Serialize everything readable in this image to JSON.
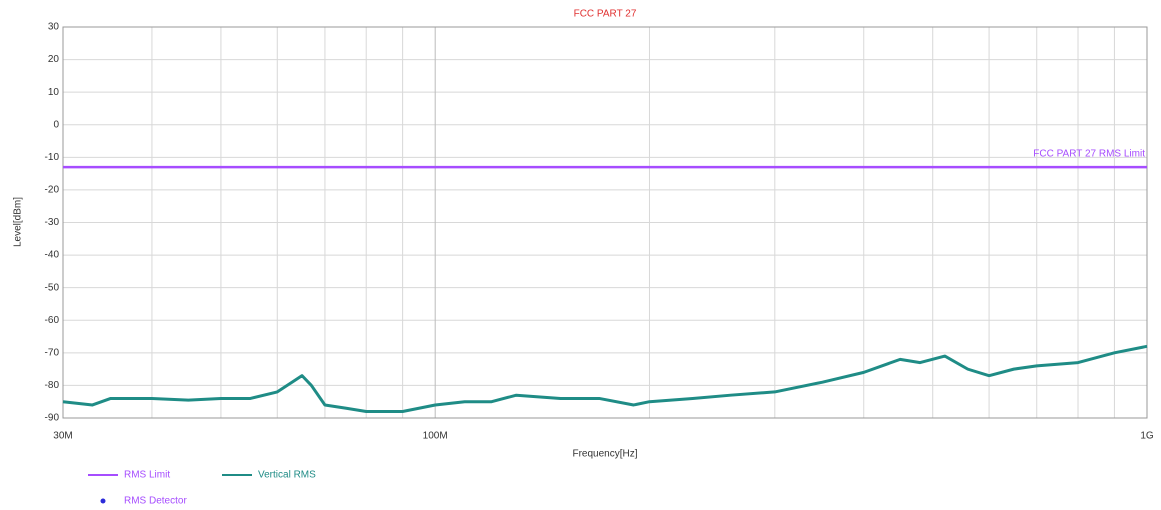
{
  "chart_data": {
    "type": "line",
    "title": "FCC PART 27",
    "xlabel": "Frequency[Hz]",
    "ylabel": "Level[dBm]",
    "log_x": true,
    "grid": true,
    "xlim": [
      30000000,
      1000000000
    ],
    "xticks": [
      {
        "value": 30000000,
        "label": "30M"
      },
      {
        "value": 100000000,
        "label": "100M"
      },
      {
        "value": 1000000000,
        "label": "1G"
      }
    ],
    "xminor": [
      40000000,
      50000000,
      60000000,
      70000000,
      80000000,
      90000000,
      200000000,
      300000000,
      400000000,
      500000000,
      600000000,
      700000000,
      800000000,
      900000000
    ],
    "ylim": [
      -90,
      30
    ],
    "yticks": [
      -90,
      -80,
      -70,
      -60,
      -50,
      -40,
      -30,
      -20,
      -10,
      0,
      10,
      20,
      30
    ],
    "limit": {
      "name": "RMS Limit",
      "label": "FCC PART 27 RMS Limit",
      "value": -13,
      "color": "#a64dff"
    },
    "detector": {
      "name": "RMS Detector",
      "color": "#2b2bd9"
    },
    "x": [
      30000000,
      33000000,
      35000000,
      40000000,
      45000000,
      50000000,
      55000000,
      60000000,
      65000000,
      67000000,
      70000000,
      75000000,
      80000000,
      90000000,
      100000000,
      110000000,
      120000000,
      130000000,
      150000000,
      170000000,
      190000000,
      200000000,
      230000000,
      260000000,
      300000000,
      350000000,
      400000000,
      450000000,
      480000000,
      520000000,
      560000000,
      600000000,
      650000000,
      700000000,
      800000000,
      900000000,
      1000000000
    ],
    "series": [
      {
        "name": "Vertical RMS",
        "color": "#1f8c86",
        "values": [
          -85,
          -86,
          -84,
          -84,
          -84.5,
          -84,
          -84,
          -82,
          -77,
          -80,
          -86,
          -87,
          -88,
          -88,
          -86,
          -85,
          -85,
          -83,
          -84,
          -84,
          -86,
          -85,
          -84,
          -83,
          -82,
          -79,
          -76,
          -72,
          -73,
          -71,
          -75,
          -77,
          -75,
          -74,
          -73,
          -70,
          -68
        ]
      }
    ]
  }
}
